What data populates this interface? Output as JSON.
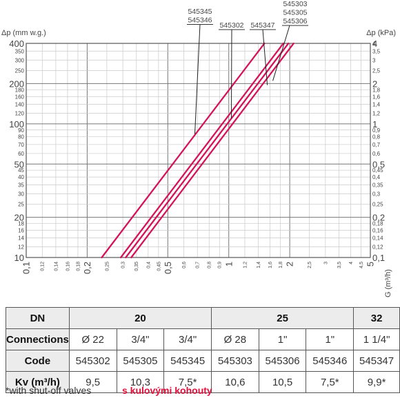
{
  "chart_data": {
    "type": "line",
    "x_axis": {
      "label": "G (m³/h)",
      "scale": "log",
      "range": [
        0.1,
        5
      ],
      "major_ticks": [
        {
          "v": 0.1,
          "t": "0,1"
        },
        {
          "v": 0.2,
          "t": "0,2"
        },
        {
          "v": 0.5,
          "t": "0,5"
        },
        {
          "v": 1,
          "t": "1"
        },
        {
          "v": 2,
          "t": "2"
        },
        {
          "v": 5,
          "t": "5"
        }
      ],
      "minor_ticks": [
        {
          "v": 0.12,
          "t": "0,12"
        },
        {
          "v": 0.14,
          "t": "0,14"
        },
        {
          "v": 0.16,
          "t": "0,16"
        },
        {
          "v": 0.18,
          "t": "0,18"
        },
        {
          "v": 0.25,
          "t": "0,25"
        },
        {
          "v": 0.3,
          "t": "0,3"
        },
        {
          "v": 0.35,
          "t": "0,35"
        },
        {
          "v": 0.4,
          "t": "0,4"
        },
        {
          "v": 0.45,
          "t": "0,45"
        },
        {
          "v": 0.6,
          "t": "0,6"
        },
        {
          "v": 0.7,
          "t": "0,7"
        },
        {
          "v": 0.8,
          "t": "0,8"
        },
        {
          "v": 0.9,
          "t": "0,9"
        },
        {
          "v": 1.2,
          "t": "1,2"
        },
        {
          "v": 1.4,
          "t": "1,4"
        },
        {
          "v": 1.6,
          "t": "1,6"
        },
        {
          "v": 1.8,
          "t": "1,8"
        },
        {
          "v": 2.5,
          "t": "2,5"
        },
        {
          "v": 3,
          "t": "3"
        },
        {
          "v": 3.5,
          "t": "3,5"
        },
        {
          "v": 4,
          "t": "4"
        },
        {
          "v": 4.5,
          "t": "4,5"
        }
      ]
    },
    "y_left": {
      "label": "Δp (mm w.g.)",
      "scale": "log",
      "range": [
        10,
        400
      ],
      "major_ticks": [
        {
          "v": 10,
          "t": "10"
        },
        {
          "v": 20,
          "t": "20"
        },
        {
          "v": 50,
          "t": "50"
        },
        {
          "v": 100,
          "t": "100"
        },
        {
          "v": 200,
          "t": "200"
        },
        {
          "v": 400,
          "t": "400"
        }
      ],
      "minor_ticks": [
        {
          "v": 12,
          "t": "12"
        },
        {
          "v": 14,
          "t": "14"
        },
        {
          "v": 16,
          "t": "16"
        },
        {
          "v": 18,
          "t": "18"
        },
        {
          "v": 25,
          "t": "25"
        },
        {
          "v": 30,
          "t": "30"
        },
        {
          "v": 35,
          "t": "35"
        },
        {
          "v": 40,
          "t": "40"
        },
        {
          "v": 45,
          "t": "45"
        },
        {
          "v": 60,
          "t": "60"
        },
        {
          "v": 70,
          "t": "70"
        },
        {
          "v": 80,
          "t": "80"
        },
        {
          "v": 90,
          "t": "90"
        },
        {
          "v": 120,
          "t": "120"
        },
        {
          "v": 140,
          "t": "140"
        },
        {
          "v": 160,
          "t": "160"
        },
        {
          "v": 180,
          "t": "180"
        },
        {
          "v": 250,
          "t": "250"
        },
        {
          "v": 300,
          "t": "300"
        },
        {
          "v": 350,
          "t": "350"
        }
      ]
    },
    "y_right": {
      "label": "Δp (kPa)",
      "major_ticks": [
        {
          "v": 10,
          "t": "0,1"
        },
        {
          "v": 20,
          "t": "0,2"
        },
        {
          "v": 50,
          "t": "0,5"
        },
        {
          "v": 100,
          "t": "1"
        },
        {
          "v": 200,
          "t": "2"
        },
        {
          "v": 400,
          "t": "4"
        }
      ],
      "minor_ticks": [
        {
          "v": 12,
          "t": "0,12"
        },
        {
          "v": 14,
          "t": "0,14"
        },
        {
          "v": 16,
          "t": "0,16"
        },
        {
          "v": 18,
          "t": "0,18"
        },
        {
          "v": 25,
          "t": "0,25"
        },
        {
          "v": 30,
          "t": "0,3"
        },
        {
          "v": 35,
          "t": "0,35"
        },
        {
          "v": 40,
          "t": "0,4"
        },
        {
          "v": 45,
          "t": "0,45"
        },
        {
          "v": 60,
          "t": "0,6"
        },
        {
          "v": 70,
          "t": "0,7"
        },
        {
          "v": 80,
          "t": "0,8"
        },
        {
          "v": 90,
          "t": "0,9"
        },
        {
          "v": 120,
          "t": "1,2"
        },
        {
          "v": 140,
          "t": "1,4"
        },
        {
          "v": 160,
          "t": "1,6"
        },
        {
          "v": 180,
          "t": "1,8"
        },
        {
          "v": 250,
          "t": "2,5"
        },
        {
          "v": 300,
          "t": "3"
        },
        {
          "v": 350,
          "t": "3,5"
        },
        {
          "v": 400,
          "t": "4"
        }
      ]
    },
    "grid": true,
    "line_color": "#d4145a",
    "series": [
      {
        "name": "545345 545346",
        "points": [
          [
            0.236,
            10
          ],
          [
            1.5,
            400
          ]
        ],
        "annotation": {
          "at": [
            0.68,
            84
          ]
        }
      },
      {
        "name": "545302",
        "points": [
          [
            0.293,
            10
          ],
          [
            1.86,
            400
          ]
        ],
        "annotation": {
          "at": [
            1.03,
            110
          ]
        }
      },
      {
        "name": "545347",
        "points": [
          [
            0.31,
            10
          ],
          [
            1.97,
            400
          ]
        ],
        "annotation": {
          "at": [
            1.55,
            195
          ]
        }
      },
      {
        "name": "545303 545305 545306",
        "points": [
          [
            0.33,
            10
          ],
          [
            2.09,
            400
          ]
        ],
        "annotation": {
          "at": [
            1.65,
            210
          ]
        }
      }
    ],
    "annotation_labels": [
      {
        "lines": [
          "545345",
          "545346"
        ]
      },
      {
        "lines": [
          "545302"
        ]
      },
      {
        "lines": [
          "545347"
        ]
      },
      {
        "lines": [
          "545303",
          "545305",
          "545306"
        ]
      }
    ]
  },
  "table": {
    "header": {
      "label": "DN",
      "groups": [
        "20",
        "25",
        "32"
      ]
    },
    "rows": [
      {
        "label": "Connections",
        "cells": [
          "Ø 22",
          "3/4\"",
          "3/4\"",
          "Ø 28",
          "1\"",
          "1\"",
          "1 1/4\""
        ]
      },
      {
        "label": "Code",
        "cells": [
          "545302",
          "545305",
          "545345",
          "545303",
          "545306",
          "545346",
          "545347"
        ]
      },
      {
        "label": "Kv (m³/h)",
        "cells": [
          "9,5",
          "10,3",
          "7,5*",
          "10,6",
          "10,5",
          "7,5*",
          "9,9*"
        ]
      }
    ]
  },
  "footnote": "*with shut-off valves",
  "footnote_local": "s kulovými kohouty"
}
